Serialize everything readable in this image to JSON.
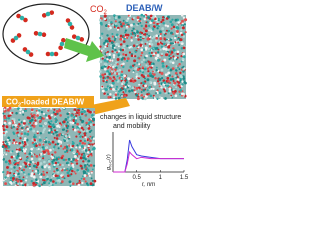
{
  "gas_label": {
    "text": "CO",
    "sub": "2"
  },
  "solvent_label": "DEAB/W",
  "loaded_label": {
    "text": "CO",
    "sub": "2",
    "tail": "-loaded DEAB/W"
  },
  "caption": [
    "changes in liquid structure",
    "and mobility"
  ],
  "plot": {
    "type": "line",
    "xlabel": "r, nm",
    "ylabel": {
      "text": "g",
      "sub": "N-C",
      "tail": "(r)"
    },
    "xlim": [
      0,
      1.5
    ],
    "xticks": [
      0.5,
      1,
      1.5
    ],
    "ylim": [
      0,
      3
    ],
    "x": [
      0,
      0.25,
      0.3,
      0.35,
      0.4,
      0.5,
      0.6,
      0.8,
      1.0,
      1.2,
      1.5
    ],
    "series": [
      {
        "color": "#3a3adf",
        "values": [
          0,
          0,
          0.9,
          2.4,
          1.9,
          1.3,
          1.2,
          1.1,
          1.0,
          1.0,
          1.0
        ]
      },
      {
        "color": "#d02ad0",
        "values": [
          0,
          0,
          0.6,
          1.5,
          1.3,
          1.0,
          1.1,
          1.0,
          1.0,
          1.0,
          1.0
        ]
      }
    ]
  }
}
